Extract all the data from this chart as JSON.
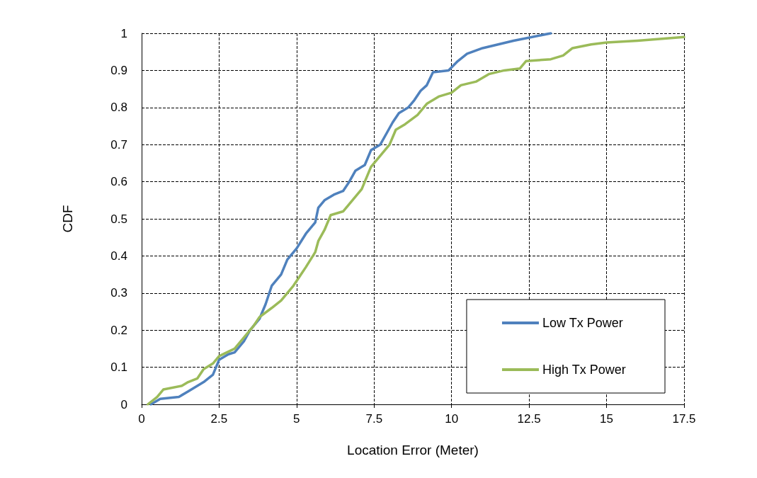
{
  "chart_data": {
    "type": "line",
    "xlabel": "Location Error (Meter)",
    "ylabel": "CDF",
    "xlim": [
      0,
      17.5
    ],
    "xticks": [
      0,
      2.5,
      5,
      7.5,
      10,
      12.5,
      15,
      17.5
    ],
    "ylim": [
      0,
      1
    ],
    "yticks": [
      0,
      0.1,
      0.2,
      0.3,
      0.4,
      0.5,
      0.6,
      0.7,
      0.8,
      0.9,
      1
    ],
    "grid": true,
    "legend": "bottom right",
    "marker": "none",
    "line_style": "solid",
    "series": [
      {
        "name": "Low Tx Power",
        "color": "#4f81bd",
        "x": [
          0.3,
          0.6,
          1.2,
          1.5,
          2.0,
          2.3,
          2.5,
          2.8,
          3.0,
          3.3,
          3.5,
          3.8,
          4.0,
          4.2,
          4.5,
          4.7,
          5.0,
          5.3,
          5.6,
          5.7,
          5.9,
          6.2,
          6.5,
          6.7,
          6.9,
          7.2,
          7.4,
          7.7,
          7.9,
          8.1,
          8.3,
          8.6,
          8.8,
          9.0,
          9.2,
          9.4,
          9.9,
          10.2,
          10.5,
          11.0,
          11.5,
          12.0,
          13.2
        ],
        "values": [
          0,
          0.015,
          0.02,
          0.035,
          0.06,
          0.08,
          0.12,
          0.135,
          0.14,
          0.17,
          0.2,
          0.23,
          0.27,
          0.32,
          0.35,
          0.39,
          0.42,
          0.46,
          0.49,
          0.53,
          0.55,
          0.565,
          0.575,
          0.6,
          0.63,
          0.645,
          0.685,
          0.7,
          0.73,
          0.76,
          0.785,
          0.8,
          0.82,
          0.845,
          0.86,
          0.895,
          0.9,
          0.925,
          0.945,
          0.96,
          0.97,
          0.98,
          1.0
        ]
      },
      {
        "name": "High Tx Power",
        "color": "#9bbb59",
        "x": [
          0.2,
          0.5,
          0.7,
          1.3,
          1.5,
          1.8,
          2.0,
          2.3,
          2.5,
          3.0,
          3.3,
          3.6,
          3.8,
          4.2,
          4.5,
          4.9,
          5.1,
          5.3,
          5.6,
          5.7,
          5.9,
          6.1,
          6.5,
          6.8,
          7.1,
          7.4,
          7.7,
          8.0,
          8.2,
          8.5,
          8.9,
          9.2,
          9.6,
          10.0,
          10.3,
          10.8,
          11.2,
          11.7,
          12.2,
          12.4,
          13.2,
          13.6,
          13.9,
          14.5,
          15.0,
          16.0,
          17.5
        ],
        "values": [
          0,
          0.02,
          0.04,
          0.05,
          0.06,
          0.07,
          0.095,
          0.11,
          0.13,
          0.15,
          0.18,
          0.21,
          0.235,
          0.26,
          0.28,
          0.32,
          0.345,
          0.37,
          0.41,
          0.44,
          0.47,
          0.51,
          0.52,
          0.55,
          0.58,
          0.64,
          0.67,
          0.7,
          0.74,
          0.755,
          0.78,
          0.81,
          0.83,
          0.84,
          0.86,
          0.87,
          0.89,
          0.9,
          0.905,
          0.925,
          0.93,
          0.94,
          0.96,
          0.97,
          0.975,
          0.98,
          0.99
        ]
      }
    ]
  }
}
